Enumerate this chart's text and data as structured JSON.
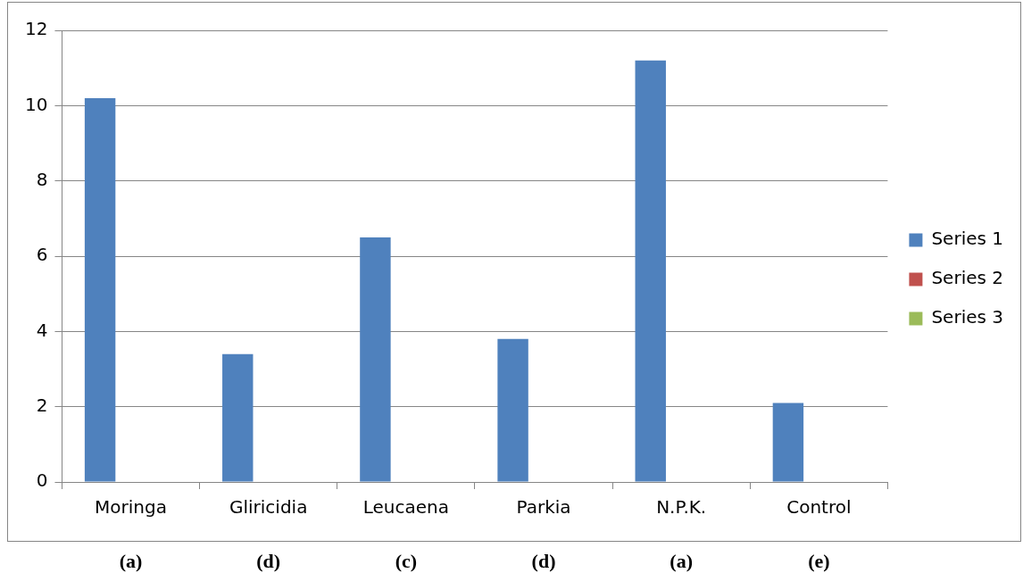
{
  "chart_data": {
    "type": "bar",
    "categories": [
      "Moringa",
      "Gliricidia",
      "Leucaena",
      "Parkia",
      "N.P.K.",
      "Control"
    ],
    "series": [
      {
        "name": "Series 1",
        "color": "#4f81bd",
        "values": [
          10.2,
          3.4,
          6.5,
          3.8,
          11.2,
          2.1
        ]
      },
      {
        "name": "Series 2",
        "color": "#c0504d",
        "values": [
          null,
          null,
          null,
          null,
          null,
          null
        ]
      },
      {
        "name": "Series 3",
        "color": "#9bbb59",
        "values": [
          null,
          null,
          null,
          null,
          null,
          null
        ]
      }
    ],
    "ylim": [
      0,
      12
    ],
    "yticks": [
      0,
      2,
      4,
      6,
      8,
      10,
      12
    ],
    "grid": "y",
    "legend": "right",
    "annotations": [
      "(a)",
      "(d)",
      "(c)",
      "(d)",
      "(a)",
      "(e)"
    ]
  }
}
